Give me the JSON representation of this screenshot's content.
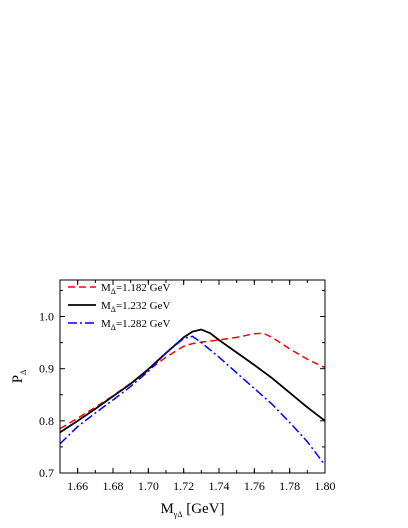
{
  "chart_data": {
    "type": "line",
    "title": "",
    "xlabel": {
      "main": "M",
      "sub": "γΔ",
      "unit": " [GeV]"
    },
    "ylabel": {
      "main": "P",
      "sub": "Δ"
    },
    "xlim": [
      1.65,
      1.8
    ],
    "ylim": [
      0.7,
      1.07
    ],
    "xticks": [
      "1.66",
      "1.68",
      "1.70",
      "1.72",
      "1.74",
      "1.76",
      "1.78",
      "1.80"
    ],
    "xtick_values": [
      1.66,
      1.68,
      1.7,
      1.72,
      1.74,
      1.76,
      1.78,
      1.8
    ],
    "yticks": [
      "0.7",
      "0.8",
      "0.9",
      "1.0"
    ],
    "ytick_values": [
      0.7,
      0.8,
      0.9,
      1.0
    ],
    "legend_placement": "top-left",
    "series": [
      {
        "name": "M_Δ=1.182 GeV",
        "name_main": "M",
        "name_sub": "Δ",
        "name_rest": "=1.182 GeV",
        "color": "#ff0000",
        "style": "dashed",
        "x": [
          1.65,
          1.66,
          1.67,
          1.68,
          1.69,
          1.7,
          1.71,
          1.72,
          1.725,
          1.73,
          1.74,
          1.75,
          1.76,
          1.765,
          1.77,
          1.78,
          1.79,
          1.8
        ],
        "y": [
          0.785,
          0.805,
          0.826,
          0.848,
          0.872,
          0.897,
          0.922,
          0.943,
          0.948,
          0.951,
          0.955,
          0.96,
          0.967,
          0.968,
          0.96,
          0.938,
          0.918,
          0.902
        ]
      },
      {
        "name": "M_Δ=1.232 GeV",
        "name_main": "M",
        "name_sub": "Δ",
        "name_rest": "=1.232 GeV",
        "color": "#000000",
        "style": "solid",
        "x": [
          1.65,
          1.66,
          1.67,
          1.68,
          1.69,
          1.7,
          1.71,
          1.72,
          1.725,
          1.73,
          1.735,
          1.74,
          1.75,
          1.76,
          1.77,
          1.78,
          1.79,
          1.8
        ],
        "y": [
          0.778,
          0.8,
          0.823,
          0.847,
          0.871,
          0.899,
          0.93,
          0.96,
          0.971,
          0.975,
          0.968,
          0.955,
          0.931,
          0.907,
          0.882,
          0.854,
          0.826,
          0.8
        ]
      },
      {
        "name": "M_Δ=1.282 GeV",
        "name_main": "M",
        "name_sub": "Δ",
        "name_rest": "=1.282 GeV",
        "color": "#0000ff",
        "style": "dashdot",
        "x": [
          1.65,
          1.66,
          1.67,
          1.68,
          1.69,
          1.7,
          1.71,
          1.72,
          1.725,
          1.73,
          1.74,
          1.75,
          1.76,
          1.77,
          1.78,
          1.79,
          1.8
        ],
        "y": [
          0.756,
          0.789,
          0.815,
          0.84,
          0.866,
          0.895,
          0.93,
          0.958,
          0.962,
          0.95,
          0.922,
          0.892,
          0.862,
          0.832,
          0.797,
          0.76,
          0.715
        ]
      }
    ]
  }
}
